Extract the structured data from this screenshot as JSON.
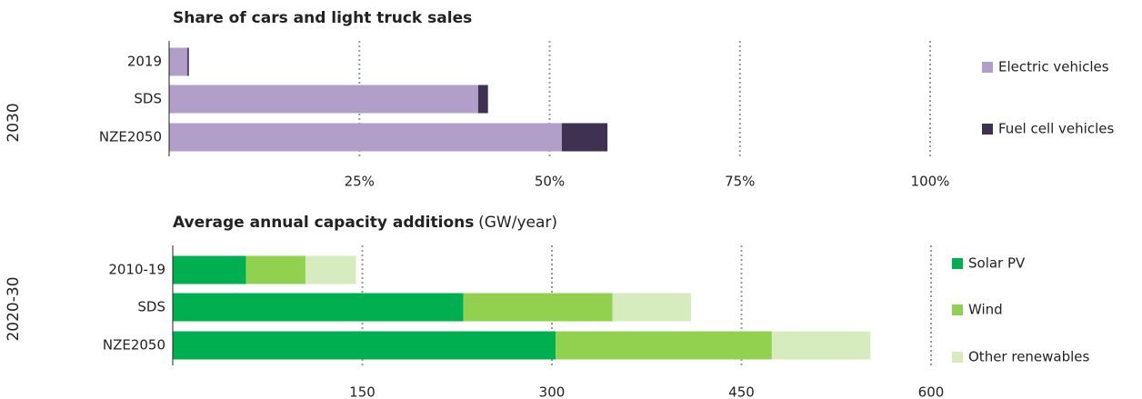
{
  "chart_data": [
    {
      "type": "bar",
      "orientation": "horizontal",
      "stacked": true,
      "group_label": "2030",
      "title": "Share of cars and light truck sales",
      "categories": [
        "2019",
        "SDS",
        "NZE2050"
      ],
      "series": [
        {
          "name": "Electric vehicles",
          "color": "#b19fc9",
          "values": [
            2.4,
            40.6,
            51.6
          ]
        },
        {
          "name": "Fuel cell vehicles",
          "color": "#3f3151",
          "values": [
            0.2,
            1.3,
            6
          ]
        }
      ],
      "xlim": [
        0,
        100
      ],
      "xticks": [
        {
          "value": 25,
          "label": "25%"
        },
        {
          "value": 50,
          "label": "50%"
        },
        {
          "value": 75,
          "label": "75%"
        },
        {
          "value": 100,
          "label": "100%"
        }
      ],
      "grid": true
    },
    {
      "type": "bar",
      "orientation": "horizontal",
      "stacked": true,
      "group_label": "2020-30",
      "title": "Average annual capacity additions",
      "unit": "(GW/year)",
      "categories": [
        "2010-19",
        "SDS",
        "NZE2050"
      ],
      "series": [
        {
          "name": "Solar PV",
          "color": "#00b050",
          "values": [
            58,
            230,
            303
          ]
        },
        {
          "name": "Wind",
          "color": "#92d050",
          "values": [
            47,
            118,
            171
          ]
        },
        {
          "name": "Other renewables",
          "color": "#d6ecbf",
          "values": [
            40,
            62,
            78
          ]
        }
      ],
      "xlim": [
        0,
        600
      ],
      "xticks": [
        150,
        300,
        450,
        600
      ],
      "grid": true
    }
  ]
}
